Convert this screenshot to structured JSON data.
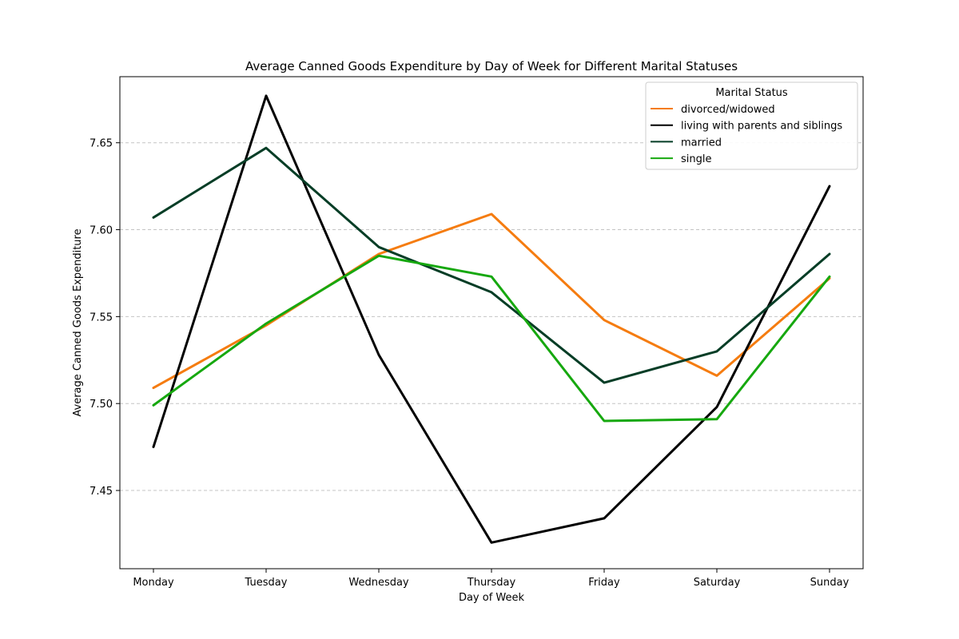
{
  "chart_data": {
    "type": "line",
    "title": "Average Canned Goods Expenditure by Day of Week for Different Marital Statuses",
    "xlabel": "Day of Week",
    "ylabel": "Average Canned Goods Expenditure",
    "categories": [
      "Monday",
      "Tuesday",
      "Wednesday",
      "Thursday",
      "Friday",
      "Saturday",
      "Sunday"
    ],
    "ylim": [
      7.405,
      7.688
    ],
    "yticks": [
      7.45,
      7.5,
      7.55,
      7.6,
      7.65
    ],
    "ytick_labels": [
      "7.45",
      "7.50",
      "7.55",
      "7.60",
      "7.65"
    ],
    "grid": "horizontal-dashed",
    "legend": {
      "title": "Marital Status",
      "placement": "top-right"
    },
    "series": [
      {
        "name": "divorced/widowed",
        "color": "#f57c10",
        "values": [
          7.509,
          7.545,
          7.586,
          7.609,
          7.548,
          7.516,
          7.572
        ]
      },
      {
        "name": "living with parents and siblings",
        "color": "#000000",
        "values": [
          7.475,
          7.677,
          7.528,
          7.42,
          7.434,
          7.498,
          7.625
        ]
      },
      {
        "name": "married",
        "color": "#053d26",
        "values": [
          7.607,
          7.647,
          7.59,
          7.564,
          7.512,
          7.53,
          7.586
        ]
      },
      {
        "name": "single",
        "color": "#16a80f",
        "values": [
          7.499,
          7.546,
          7.585,
          7.573,
          7.49,
          7.491,
          7.573
        ]
      }
    ]
  }
}
